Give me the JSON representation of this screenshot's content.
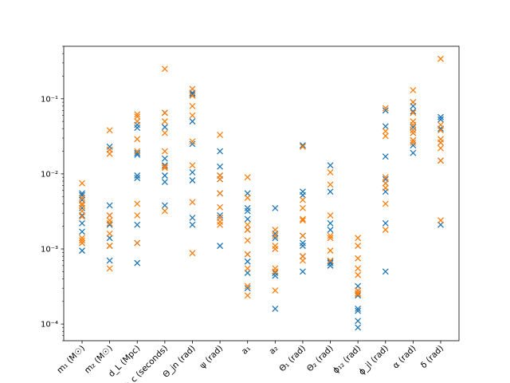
{
  "chart_data": {
    "type": "scatter",
    "yscale": "log",
    "ylim": [
      6e-05,
      0.5
    ],
    "grid": false,
    "legend": "none",
    "colors": [
      "#1f77b4",
      "#ff7f0e"
    ],
    "marker": "x",
    "y_ticks": [
      {
        "value": 0.0001,
        "label": "10⁻⁴"
      },
      {
        "value": 0.001,
        "label": "10⁻³"
      },
      {
        "value": 0.01,
        "label": "10⁻²"
      },
      {
        "value": 0.1,
        "label": "10⁻¹"
      }
    ],
    "categories": [
      "m₁ (M☉)",
      "m₂ (M☉)",
      "d_L (Mpc)",
      "t_c (seconds)",
      "Θ_jn (rad)",
      "ψ (rad)",
      "a₁",
      "a₂",
      "Θ₁ (rad)",
      "Θ₂ (rad)",
      "ϕ₁₂ (rad)",
      "ϕ_jl (rad)",
      "α (rad)",
      "δ (rad)"
    ],
    "series": [
      {
        "values": [
          [
            0.0055,
            0.0052,
            0.0045,
            0.0035,
            0.0028,
            0.0022,
            0.0017,
            0.0012,
            0.00095
          ],
          [
            0.023,
            0.021,
            0.0038,
            0.0028,
            0.0021,
            0.0014,
            0.0011,
            0.0007
          ],
          [
            0.045,
            0.041,
            0.019,
            0.018,
            0.0095,
            0.0088,
            0.0021,
            0.0012,
            0.00065
          ],
          [
            0.065,
            0.042,
            0.016,
            0.013,
            0.0095,
            0.0078,
            0.0038
          ],
          [
            0.12,
            0.115,
            0.05,
            0.025,
            0.0105,
            0.0082,
            0.0026,
            0.0021
          ],
          [
            0.02,
            0.0125,
            0.0095,
            0.0085,
            0.0055,
            0.0028,
            0.0026,
            0.0011
          ],
          [
            0.0055,
            0.0035,
            0.0032,
            0.0025,
            0.0018,
            0.00085,
            0.00068,
            0.00048,
            0.0003
          ],
          [
            0.0035,
            0.0016,
            0.0014,
            0.00048,
            0.00044,
            0.00016
          ],
          [
            0.024,
            0.0058,
            0.0052,
            0.0015,
            0.0012,
            0.0011,
            0.0008,
            0.0005
          ],
          [
            0.013,
            0.0058,
            0.0022,
            0.0018,
            0.00068,
            0.00065,
            0.0006
          ],
          [
            0.00032,
            0.00028,
            0.00024,
            0.00016,
            0.00015,
            0.00011,
            9e-05
          ],
          [
            0.07,
            0.043,
            0.017,
            0.0085,
            0.0075,
            0.0058,
            0.0022,
            0.0005
          ],
          [
            0.09,
            0.08,
            0.068,
            0.042,
            0.035,
            0.028,
            0.024,
            0.019
          ],
          [
            0.057,
            0.053,
            0.04,
            0.026,
            0.015,
            0.0021
          ]
        ]
      },
      {
        "values": [
          [
            0.0075,
            0.0048,
            0.004,
            0.0038,
            0.0032,
            0.0027,
            0.0014,
            0.0013,
            0.0012
          ],
          [
            0.038,
            0.021,
            0.0185,
            0.0028,
            0.0024,
            0.0022,
            0.0016,
            0.0011,
            0.00055
          ],
          [
            0.062,
            0.058,
            0.05,
            0.029,
            0.02,
            0.004,
            0.0028,
            0.0012
          ],
          [
            0.25,
            0.065,
            0.05,
            0.035,
            0.02,
            0.0125,
            0.012,
            0.0032
          ],
          [
            0.135,
            0.11,
            0.08,
            0.06,
            0.027,
            0.013,
            0.0042,
            0.00088
          ],
          [
            0.033,
            0.0095,
            0.0085,
            0.0055,
            0.0036,
            0.0026,
            0.0023,
            0.0021
          ],
          [
            0.009,
            0.0048,
            0.0021,
            0.0018,
            0.0013,
            0.00085,
            0.00055,
            0.00032,
            0.00024
          ],
          [
            0.0018,
            0.0015,
            0.0011,
            0.001,
            0.00055,
            0.0005,
            0.00028
          ],
          [
            0.023,
            0.0045,
            0.0035,
            0.0025,
            0.0024,
            0.0015,
            0.0008,
            0.0007
          ],
          [
            0.0105,
            0.0072,
            0.0028,
            0.0015,
            0.0014,
            0.00095,
            0.0007
          ],
          [
            0.0014,
            0.0011,
            0.00075,
            0.00055,
            0.00045,
            0.00028,
            0.00026,
            0.00025
          ],
          [
            0.075,
            0.037,
            0.032,
            0.009,
            0.0075,
            0.0065,
            0.004,
            0.0018
          ],
          [
            0.13,
            0.09,
            0.065,
            0.05,
            0.045,
            0.038,
            0.035,
            0.028,
            0.026
          ],
          [
            0.34,
            0.045,
            0.038,
            0.029,
            0.026,
            0.022,
            0.015,
            0.0024
          ]
        ]
      }
    ]
  }
}
